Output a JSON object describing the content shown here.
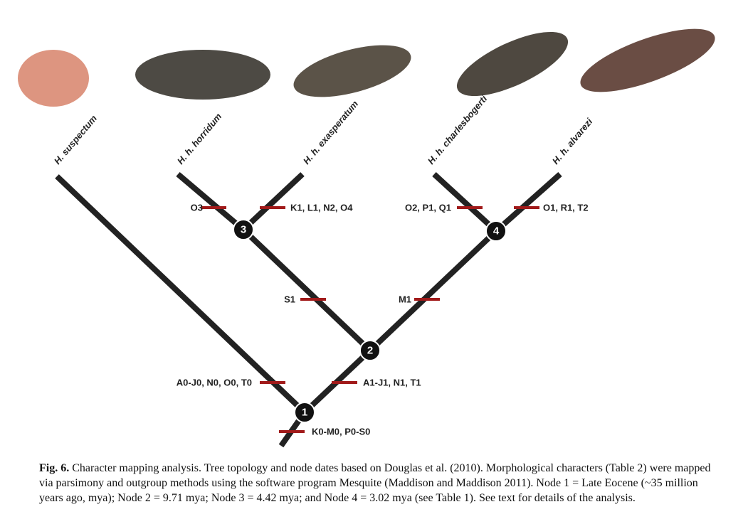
{
  "taxa": [
    {
      "label": "H. suspectum"
    },
    {
      "label": "H. h. horridum"
    },
    {
      "label": "H. h. exasperatum"
    },
    {
      "label": "H. h. charlesbogerti"
    },
    {
      "label": "H. h. alvarezi"
    }
  ],
  "nodes": [
    {
      "label": "1"
    },
    {
      "label": "2"
    },
    {
      "label": "3"
    },
    {
      "label": "4"
    }
  ],
  "characters": [
    {
      "label": "O3"
    },
    {
      "label": "K1, L1, N2, O4"
    },
    {
      "label": "O2, P1, Q1"
    },
    {
      "label": "O1, R1, T2"
    },
    {
      "label": "S1"
    },
    {
      "label": "M1"
    },
    {
      "label": "A0-J0, N0, O0, T0"
    },
    {
      "label": "A1-J1, N1, T1"
    },
    {
      "label": "K0-M0, P0-S0"
    }
  ],
  "caption": {
    "label": "Fig. 6.",
    "text": "Character mapping analysis. Tree topology and node dates based on Douglas et al. (2010). Morphological characters (Table 2) were mapped via parsimony and outgroup methods using the software program Mesquite (Maddison and Maddison 2011). Node 1 = Late Eocene (~35 million years ago, mya); Node 2 = 9.71 mya; Node 3 = 4.42 mya; and Node 4 = 3.02 mya (see Table 1). See text for details of the analysis."
  }
}
